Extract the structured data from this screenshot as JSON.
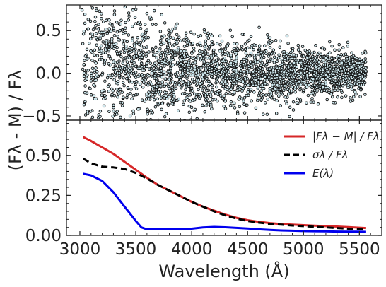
{
  "chart_data": [
    {
      "type": "scatter",
      "panel": "top",
      "ylabel": "(Fλ - M) / Fλ",
      "xlim": [
        2880,
        5700
      ],
      "ylim": [
        -0.55,
        0.8
      ],
      "yticks": [
        0.5,
        0.0,
        -0.5
      ],
      "ytick_labels": [
        "0.5",
        "0.0",
        "−0.5"
      ],
      "marker_edge_color": "#111111",
      "marker_face_color": "#cfe8ee",
      "points": [
        [
          3020,
          0.74
        ],
        [
          3045,
          0.69
        ],
        [
          3075,
          0.52
        ],
        [
          3095,
          0.61
        ],
        [
          3050,
          0.2
        ],
        [
          3150,
          0.33
        ],
        [
          3110,
          0.15
        ],
        [
          3190,
          0.44
        ],
        [
          3230,
          0.27
        ],
        [
          3270,
          0.58
        ],
        [
          3310,
          0.73
        ],
        [
          3370,
          0.62
        ],
        [
          3400,
          0.38
        ],
        [
          3440,
          0.67
        ],
        [
          3470,
          0.55
        ],
        [
          3500,
          0.75
        ],
        [
          3530,
          0.6
        ],
        [
          3560,
          0.46
        ],
        [
          3600,
          0.7
        ],
        [
          3640,
          0.64
        ],
        [
          3680,
          0.57
        ],
        [
          3720,
          0.49
        ],
        [
          3760,
          0.59
        ],
        [
          3810,
          0.42
        ],
        [
          3850,
          0.52
        ],
        [
          3900,
          0.38
        ],
        [
          3950,
          0.47
        ],
        [
          4010,
          0.35
        ],
        [
          4060,
          0.43
        ],
        [
          4120,
          0.29
        ],
        [
          4180,
          0.37
        ],
        [
          4250,
          0.26
        ],
        [
          4320,
          0.32
        ],
        [
          4400,
          0.24
        ],
        [
          4480,
          0.28
        ],
        [
          4560,
          0.21
        ],
        [
          4650,
          0.25
        ],
        [
          4740,
          0.19
        ],
        [
          4830,
          0.22
        ],
        [
          4920,
          0.17
        ],
        [
          5000,
          0.2
        ],
        [
          5100,
          0.15
        ],
        [
          5200,
          0.18
        ],
        [
          5300,
          0.13
        ],
        [
          5400,
          0.14
        ],
        [
          5500,
          0.12
        ],
        [
          3330,
          -0.48
        ],
        [
          3380,
          -0.38
        ],
        [
          3450,
          -0.5
        ],
        [
          3520,
          -0.42
        ],
        [
          3580,
          -0.33
        ],
        [
          3650,
          -0.46
        ],
        [
          3700,
          -0.37
        ],
        [
          3760,
          -0.51
        ],
        [
          3820,
          -0.32
        ],
        [
          3880,
          -0.44
        ],
        [
          3950,
          -0.29
        ],
        [
          4000,
          -0.4
        ],
        [
          4080,
          -0.27
        ],
        [
          4150,
          -0.36
        ],
        [
          4230,
          -0.24
        ],
        [
          4300,
          -0.33
        ],
        [
          4380,
          -0.22
        ],
        [
          4450,
          -0.3
        ],
        [
          4530,
          -0.19
        ],
        [
          4600,
          -0.26
        ],
        [
          4700,
          -0.18
        ],
        [
          4800,
          -0.23
        ],
        [
          4900,
          -0.16
        ],
        [
          5000,
          -0.2
        ],
        [
          5100,
          -0.14
        ],
        [
          5200,
          -0.17
        ],
        [
          5300,
          -0.12
        ],
        [
          5400,
          -0.14
        ],
        [
          5500,
          -0.11
        ],
        [
          3400,
          0.05
        ],
        [
          3500,
          -0.05
        ],
        [
          3600,
          0.08
        ],
        [
          3700,
          -0.03
        ],
        [
          3800,
          0.02
        ],
        [
          3900,
          -0.08
        ],
        [
          4000,
          0.06
        ],
        [
          4100,
          -0.02
        ],
        [
          4200,
          0.03
        ],
        [
          4300,
          -0.06
        ],
        [
          4400,
          0.04
        ],
        [
          4500,
          0.01
        ],
        [
          4600,
          -0.04
        ],
        [
          4700,
          0.05
        ],
        [
          4800,
          -0.01
        ],
        [
          4900,
          0.03
        ],
        [
          5000,
          -0.03
        ],
        [
          5100,
          0.02
        ],
        [
          5200,
          -0.02
        ],
        [
          5300,
          0.01
        ],
        [
          5400,
          0.0
        ],
        [
          5500,
          -0.01
        ]
      ]
    },
    {
      "type": "line",
      "panel": "bottom",
      "xlabel": "Wavelength (Å)",
      "xlim": [
        2880,
        5700
      ],
      "ylim": [
        0.0,
        0.72
      ],
      "xticks": [
        3000,
        3500,
        4000,
        4500,
        5000,
        5500
      ],
      "xtick_labels": [
        "3000",
        "3500",
        "4000",
        "4500",
        "5000",
        "5500"
      ],
      "yticks": [
        0.0,
        0.25,
        0.5
      ],
      "ytick_labels": [
        "0.00",
        "0.25",
        "0.50"
      ],
      "legend_position": "top-right",
      "series": [
        {
          "name": "|Fλ − M| / Fλ",
          "color": "#d62728",
          "style": "solid",
          "x": [
            3030,
            3100,
            3200,
            3300,
            3400,
            3500,
            3600,
            3700,
            3800,
            3900,
            4000,
            4100,
            4200,
            4300,
            4400,
            4500,
            4600,
            4700,
            4800,
            4900,
            5000,
            5100,
            5200,
            5300,
            5400,
            5500,
            5560
          ],
          "values": [
            0.615,
            0.59,
            0.55,
            0.51,
            0.46,
            0.41,
            0.36,
            0.315,
            0.28,
            0.245,
            0.21,
            0.18,
            0.155,
            0.13,
            0.11,
            0.095,
            0.085,
            0.077,
            0.071,
            0.067,
            0.064,
            0.061,
            0.058,
            0.055,
            0.052,
            0.048,
            0.046
          ]
        },
        {
          "name": "σλ / Fλ",
          "color": "#000000",
          "style": "dashed",
          "x": [
            3030,
            3100,
            3200,
            3300,
            3400,
            3500,
            3600,
            3700,
            3800,
            3900,
            4000,
            4100,
            4200,
            4300,
            4400,
            4500,
            4600,
            4700,
            4800,
            4900,
            5000,
            5100,
            5200,
            5300,
            5400,
            5500,
            5560
          ],
          "values": [
            0.48,
            0.45,
            0.43,
            0.425,
            0.415,
            0.39,
            0.355,
            0.315,
            0.28,
            0.245,
            0.21,
            0.18,
            0.15,
            0.125,
            0.105,
            0.09,
            0.08,
            0.072,
            0.067,
            0.062,
            0.058,
            0.054,
            0.05,
            0.046,
            0.042,
            0.038,
            0.036
          ]
        },
        {
          "name": "E(λ)",
          "color": "#0000ee",
          "style": "solid",
          "x": [
            3030,
            3100,
            3200,
            3300,
            3400,
            3500,
            3550,
            3600,
            3650,
            3700,
            3800,
            3900,
            4000,
            4100,
            4200,
            4300,
            4400,
            4500,
            4600,
            4700,
            4800,
            4900,
            5000,
            5100,
            5200,
            5300,
            5400,
            5500,
            5560
          ],
          "values": [
            0.385,
            0.375,
            0.34,
            0.27,
            0.18,
            0.09,
            0.05,
            0.038,
            0.038,
            0.04,
            0.042,
            0.038,
            0.042,
            0.05,
            0.053,
            0.051,
            0.047,
            0.043,
            0.038,
            0.034,
            0.031,
            0.029,
            0.027,
            0.026,
            0.025,
            0.024,
            0.023,
            0.023,
            0.022
          ]
        }
      ]
    }
  ]
}
